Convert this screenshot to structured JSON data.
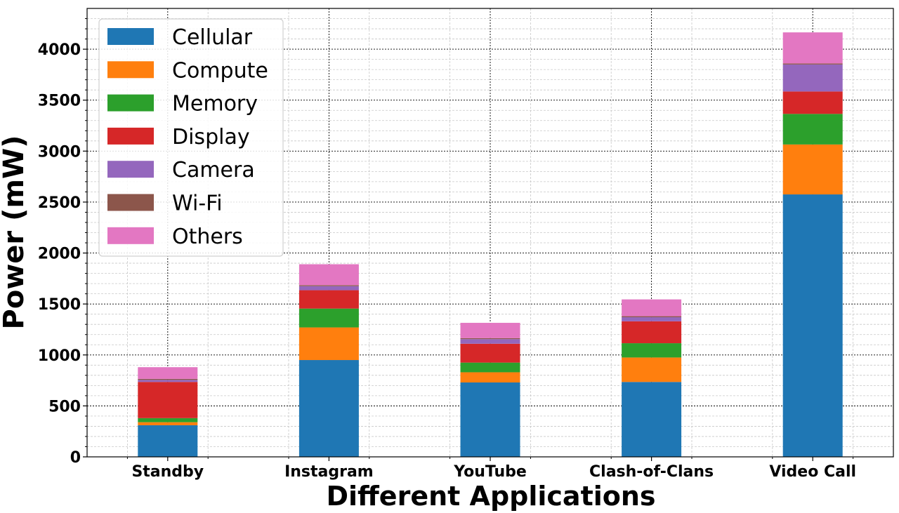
{
  "chart_data": {
    "type": "bar",
    "stacked": true,
    "title": "",
    "xlabel": "Different Applications",
    "ylabel": "Power (mW)",
    "categories": [
      "Standby",
      "Instagram",
      "YouTube",
      "Clash-of-Clans",
      "Video Call"
    ],
    "ylim": [
      0,
      4400
    ],
    "yticks": [
      0,
      500,
      1000,
      1500,
      2000,
      2500,
      3000,
      3500,
      4000
    ],
    "grid": true,
    "legend_position": "top-left",
    "series": [
      {
        "name": "Cellular",
        "color": "#1f77b4",
        "values": [
          310,
          950,
          730,
          735,
          2575
        ]
      },
      {
        "name": "Compute",
        "color": "#ff7f0e",
        "values": [
          30,
          320,
          100,
          240,
          490
        ]
      },
      {
        "name": "Memory",
        "color": "#2ca02c",
        "values": [
          40,
          185,
          95,
          140,
          300
        ]
      },
      {
        "name": "Display",
        "color": "#d62728",
        "values": [
          355,
          180,
          185,
          215,
          220
        ]
      },
      {
        "name": "Camera",
        "color": "#9467bd",
        "values": [
          20,
          40,
          45,
          40,
          265
        ]
      },
      {
        "name": "Wi-Fi",
        "color": "#8c564b",
        "values": [
          10,
          10,
          10,
          10,
          10
        ]
      },
      {
        "name": "Others",
        "color": "#e377c2",
        "values": [
          115,
          205,
          150,
          165,
          305
        ]
      }
    ]
  }
}
